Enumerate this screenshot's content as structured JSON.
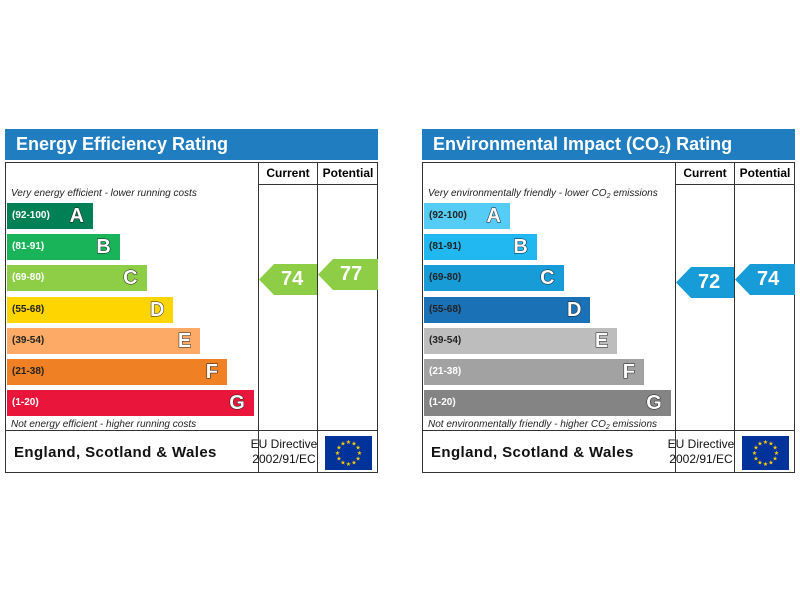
{
  "chart_data": [
    {
      "type": "bar",
      "title": "Energy Efficiency Rating",
      "column_headers": [
        "Current",
        "Potential"
      ],
      "top_note": "Very energy efficient - lower running costs",
      "bottom_note": "Not energy efficient - higher running costs",
      "bands": [
        {
          "range": "(92-100)",
          "letter": "A",
          "min": 92,
          "max": 100,
          "color": "#008054",
          "text_color": "#ffffff"
        },
        {
          "range": "(81-91)",
          "letter": "B",
          "min": 81,
          "max": 91,
          "color": "#19b459",
          "text_color": "#ffffff"
        },
        {
          "range": "(69-80)",
          "letter": "C",
          "min": 69,
          "max": 80,
          "color": "#8dce46",
          "text_color": "#ffffff"
        },
        {
          "range": "(55-68)",
          "letter": "D",
          "min": 55,
          "max": 68,
          "color": "#ffd500",
          "text_color": "#222222"
        },
        {
          "range": "(39-54)",
          "letter": "E",
          "min": 39,
          "max": 54,
          "color": "#fcaa65",
          "text_color": "#222222"
        },
        {
          "range": "(21-38)",
          "letter": "F",
          "min": 21,
          "max": 38,
          "color": "#ef8023",
          "text_color": "#222222"
        },
        {
          "range": "(1-20)",
          "letter": "G",
          "min": 1,
          "max": 20,
          "color": "#e9153b",
          "text_color": "#ffffff"
        }
      ],
      "current": {
        "value": "74",
        "color": "#8dce46"
      },
      "potential": {
        "value": "77",
        "color": "#8dce46"
      },
      "footer_region": "England, Scotland & Wales",
      "footer_directive": [
        "EU Directive",
        "2002/91/EC"
      ]
    },
    {
      "type": "bar",
      "title": "Environmental Impact (CO2) Rating",
      "column_headers": [
        "Current",
        "Potential"
      ],
      "top_note": "Very environmentally friendly - lower CO2 emissions",
      "bottom_note": "Not environmentally friendly - higher CO2 emissions",
      "bands": [
        {
          "range": "(92-100)",
          "letter": "A",
          "min": 92,
          "max": 100,
          "color": "#55ccf6",
          "text_color": "#222222"
        },
        {
          "range": "(81-91)",
          "letter": "B",
          "min": 81,
          "max": 91,
          "color": "#21b7f0",
          "text_color": "#222222"
        },
        {
          "range": "(69-80)",
          "letter": "C",
          "min": 69,
          "max": 80,
          "color": "#179cd8",
          "text_color": "#222222"
        },
        {
          "range": "(55-68)",
          "letter": "D",
          "min": 55,
          "max": 68,
          "color": "#1a71b5",
          "text_color": "#222222"
        },
        {
          "range": "(39-54)",
          "letter": "E",
          "min": 39,
          "max": 54,
          "color": "#bdbdbd",
          "text_color": "#222222"
        },
        {
          "range": "(21-38)",
          "letter": "F",
          "min": 21,
          "max": 38,
          "color": "#a2a2a2",
          "text_color": "#ffffff"
        },
        {
          "range": "(1-20)",
          "letter": "G",
          "min": 1,
          "max": 20,
          "color": "#848484",
          "text_color": "#ffffff"
        }
      ],
      "current": {
        "value": "72",
        "color": "#179cd8"
      },
      "potential": {
        "value": "74",
        "color": "#179cd8"
      },
      "footer_region": "England, Scotland & Wales",
      "footer_directive": [
        "EU Directive",
        "2002/91/EC"
      ]
    }
  ],
  "labels": {
    "left_title": "Energy Efficiency Rating",
    "right_title_prefix": "Environmental Impact (CO",
    "right_title_subscript": "2",
    "right_title_suffix": ") Rating",
    "right_top_note_prefix": "Very environmentally friendly - lower CO",
    "right_top_note_subscript": "2",
    "right_top_note_suffix": " emissions",
    "right_bottom_note_prefix": "Not environmentally friendly - higher CO",
    "right_bottom_note_subscript": "2",
    "right_bottom_note_suffix": " emissions"
  },
  "colors": {
    "title_bar": "#1f7dc0",
    "border": "#333333",
    "eu_flag_blue": "#003399",
    "eu_flag_star": "#ffcc00"
  },
  "icons": [
    "eu-flag-icon"
  ]
}
